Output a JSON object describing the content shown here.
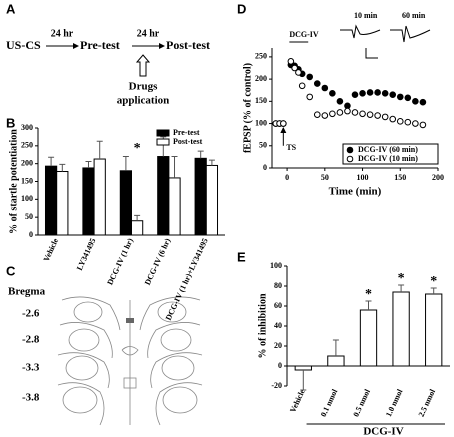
{
  "panel_labels": [
    "A",
    "B",
    "C",
    "D",
    "E"
  ],
  "diagram": {
    "steps": [
      "US-CS",
      "Pre-test",
      "Post-test"
    ],
    "intervals": [
      "24 hr",
      "24 hr"
    ],
    "drugs": [
      "Drugs",
      "application"
    ]
  },
  "brain_sections": {
    "title": "Bregma",
    "levels": [
      "-2.6",
      "-2.8",
      "-3.3",
      "-3.8"
    ]
  },
  "chart_data": [
    {
      "type": "bar",
      "ylabel": "% of startle potentiation",
      "categories": [
        "Vehicle",
        "LY341495",
        "DCG-IV (1 hr)",
        "DCG-IV (6 hr)",
        "DCG-IV (1 hr)+LY341495"
      ],
      "series": [
        {
          "name": "Pre-test",
          "color": "#000000",
          "values": [
            193,
            188,
            180,
            220,
            215
          ],
          "errors": [
            25,
            18,
            40,
            55,
            20
          ]
        },
        {
          "name": "Post-test",
          "color": "#ffffff",
          "values": [
            178,
            213,
            40,
            160,
            195
          ],
          "errors": [
            20,
            50,
            15,
            60,
            15
          ]
        }
      ],
      "ylim": [
        0,
        300
      ],
      "yticks": [
        0,
        50,
        100,
        150,
        200,
        250,
        300
      ],
      "annotations": [
        "*"
      ]
    },
    {
      "type": "line",
      "xlabel": "Time (min)",
      "ylabel": "fEPSP (% of control)",
      "x": [
        -15,
        -10,
        -5,
        5,
        10,
        15,
        20,
        30,
        40,
        50,
        60,
        70,
        80,
        90,
        100,
        110,
        120,
        130,
        140,
        150,
        160,
        170,
        180
      ],
      "series": [
        {
          "name": "DCG-IV (60 min)",
          "color": "#000000",
          "values": [
            100,
            100,
            100,
            232,
            230,
            222,
            212,
            205,
            190,
            180,
            168,
            150,
            140,
            165,
            168,
            170,
            170,
            168,
            165,
            160,
            158,
            150,
            148
          ]
        },
        {
          "name": "DCG-IV (10 min)",
          "color": "#ffffff",
          "values": [
            100,
            100,
            100,
            240,
            225,
            215,
            185,
            160,
            120,
            118,
            122,
            125,
            128,
            125,
            122,
            120,
            118,
            115,
            110,
            105,
            103,
            100,
            97
          ]
        }
      ],
      "xlim": [
        -20,
        200
      ],
      "xticks": [
        0,
        50,
        100,
        150,
        200
      ],
      "ylim": [
        0,
        270
      ],
      "yticks": [
        0,
        50,
        100,
        150,
        200,
        250
      ],
      "annotations": [
        "DCG-IV",
        "TS"
      ],
      "inset_labels": [
        "10 min",
        "60 min"
      ]
    },
    {
      "type": "bar",
      "ylabel": "% of inhibition",
      "categories": [
        "Vehicle",
        "0.1 nmol",
        "0.5 nmol",
        "1.0 nmol",
        "2.5 nmol"
      ],
      "values": [
        -4,
        10,
        56,
        74,
        72
      ],
      "errors": [
        20,
        16,
        9,
        7,
        6
      ],
      "color": "#ffffff",
      "ylim": [
        -20,
        100
      ],
      "yticks": [
        -20,
        0,
        20,
        40,
        60,
        80,
        100
      ],
      "annotations": [
        "*",
        "*",
        "*"
      ],
      "group_label": "DCG-IV"
    }
  ]
}
